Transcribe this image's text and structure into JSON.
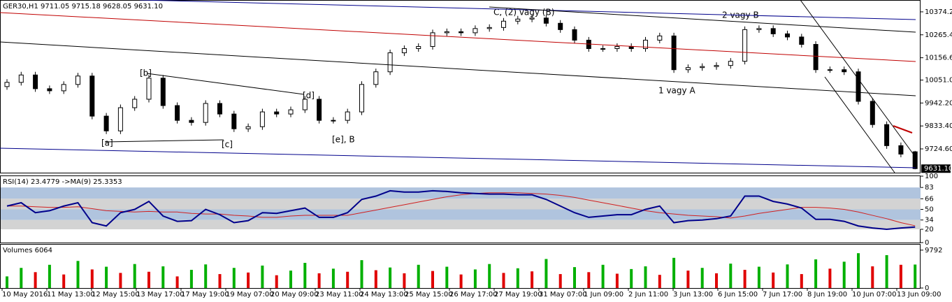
{
  "chart_data": [
    {
      "type": "candlestick",
      "title": "GER30,H1  9711.05 9715.18 9628.05 9631.10",
      "open": [
        10020,
        10040,
        10075,
        10010,
        10000,
        10030,
        10070,
        9880,
        9810,
        9920,
        9960,
        10060,
        9930,
        9860,
        9850,
        9940,
        9890,
        9820,
        9830,
        9900,
        9890,
        9910,
        9960,
        9860,
        9860,
        9900,
        10030,
        10090,
        10180,
        10200,
        10210,
        10275,
        10280,
        10275,
        10295,
        10300,
        10330,
        10340,
        10345,
        10320,
        10290,
        10240,
        10200,
        10200,
        10210,
        10200,
        10240,
        10260,
        10100,
        10110,
        10115,
        10120,
        10140,
        10290,
        10295,
        10270,
        10255,
        10220,
        10100,
        10100,
        10090,
        9950,
        9840,
        9740,
        9711.05
      ],
      "high": [
        10055,
        10090,
        10090,
        10025,
        10045,
        10085,
        10085,
        9895,
        9935,
        9975,
        10075,
        10075,
        9945,
        9875,
        9955,
        9955,
        9905,
        9845,
        9915,
        9915,
        9925,
        9975,
        9975,
        9875,
        9915,
        10045,
        10105,
        10195,
        10215,
        10225,
        10290,
        10295,
        10295,
        10310,
        10315,
        10345,
        10355,
        10360,
        10360,
        10335,
        10305,
        10255,
        10215,
        10225,
        10225,
        10255,
        10275,
        10275,
        10125,
        10130,
        10135,
        10155,
        10305,
        10310,
        10310,
        10285,
        10270,
        10235,
        10115,
        10115,
        10105,
        9965,
        9855,
        9755,
        9715.18
      ],
      "low": [
        10005,
        10025,
        9995,
        9985,
        9985,
        10015,
        9865,
        9795,
        9795,
        9905,
        9945,
        9915,
        9845,
        9835,
        9835,
        9875,
        9805,
        9805,
        9815,
        9875,
        9875,
        9895,
        9845,
        9845,
        9845,
        9885,
        10015,
        10075,
        10165,
        10185,
        10195,
        10260,
        10260,
        10260,
        10280,
        10285,
        10315,
        10325,
        10305,
        10275,
        10225,
        10185,
        10185,
        10185,
        10185,
        10185,
        10225,
        10085,
        10085,
        10095,
        10100,
        10105,
        10125,
        10275,
        10255,
        10240,
        10205,
        10085,
        10085,
        10075,
        9935,
        9825,
        9725,
        9685,
        9628.05
      ],
      "close": [
        10040,
        10075,
        10010,
        10000,
        10030,
        10070,
        9880,
        9810,
        9920,
        9960,
        10060,
        9930,
        9860,
        9850,
        9940,
        9890,
        9820,
        9830,
        9900,
        9890,
        9910,
        9960,
        9860,
        9860,
        9900,
        10030,
        10090,
        10180,
        10200,
        10210,
        10275,
        10280,
        10275,
        10295,
        10300,
        10330,
        10340,
        10345,
        10320,
        10290,
        10240,
        10200,
        10200,
        10210,
        10200,
        10240,
        10260,
        10100,
        10110,
        10115,
        10120,
        10140,
        10290,
        10295,
        10270,
        10255,
        10220,
        10100,
        10100,
        10090,
        9950,
        9840,
        9740,
        9700,
        9631.1
      ],
      "up_color": "#ffffff",
      "down_color": "#000000",
      "ylim": [
        9612,
        10427
      ],
      "yticks": [
        {
          "value": 10374.2,
          "label": "10374.20"
        },
        {
          "value": 10265.4,
          "label": "10265.40"
        },
        {
          "value": 10156.6,
          "label": "10156.60"
        },
        {
          "value": 10051,
          "label": "10051.00"
        },
        {
          "value": 9942.2,
          "label": "9942.20"
        },
        {
          "value": 9833.4,
          "label": "9833.40"
        },
        {
          "value": 9724.6,
          "label": "9724.60"
        }
      ],
      "price_marker": {
        "value": 9631.1,
        "label": "9631.10"
      },
      "annotations": [
        "C, (2) vagy (B)",
        "2 vagy B",
        "1 vagy A",
        "[b]",
        "[a]",
        "[c]",
        "[d]",
        "[e], B"
      ]
    },
    {
      "type": "line",
      "title": "RSI(14) 23.4779 ->MA(9) 25.3353",
      "series": [
        {
          "color": "#00008b",
          "values": [
            55,
            60,
            45,
            48,
            55,
            60,
            30,
            25,
            45,
            50,
            62,
            40,
            32,
            33,
            50,
            42,
            30,
            33,
            45,
            44,
            48,
            52,
            38,
            38,
            45,
            65,
            70,
            78,
            76,
            76,
            78,
            77,
            75,
            74,
            73,
            73,
            72,
            72,
            65,
            55,
            45,
            38,
            40,
            42,
            42,
            50,
            55,
            30,
            33,
            34,
            36,
            40,
            70,
            70,
            62,
            58,
            52,
            35,
            35,
            32,
            25,
            22,
            20,
            22,
            23.48
          ]
        },
        {
          "color": "#d02020",
          "values": [
            55,
            55,
            54,
            53,
            53,
            54,
            51,
            48,
            47,
            46,
            47,
            46,
            46,
            44,
            43,
            43,
            41,
            40,
            38,
            38,
            40,
            41,
            41,
            41,
            41,
            45,
            49,
            53,
            57,
            61,
            65,
            69,
            72,
            74,
            75,
            75,
            75,
            74,
            73,
            71,
            68,
            64,
            60,
            56,
            52,
            48,
            45,
            43,
            41,
            40,
            39,
            37,
            40,
            44,
            47,
            50,
            53,
            53,
            52,
            50,
            46,
            41,
            36,
            30,
            25.34
          ]
        }
      ],
      "ylim": [
        0,
        100
      ],
      "yticks": [
        0,
        20,
        34,
        50,
        66,
        83,
        100
      ]
    },
    {
      "type": "bar",
      "title": "Volumes 6064",
      "values": [
        3000,
        5200,
        4100,
        6000,
        3500,
        7000,
        4800,
        5500,
        3900,
        6200,
        4200,
        5600,
        3000,
        4700,
        6100,
        3600,
        5200,
        4000,
        5800,
        3300,
        4500,
        6500,
        3800,
        5000,
        4200,
        7200,
        4600,
        5300,
        3800,
        6000,
        4400,
        5500,
        3500,
        4800,
        6200,
        3900,
        5100,
        4300,
        7500,
        3600,
        5400,
        4100,
        6000,
        3700,
        4900,
        5600,
        3400,
        7800,
        4500,
        5200,
        3800,
        6300,
        4700,
        5500,
        4000,
        6100,
        3600,
        7400,
        5000,
        6800,
        9000,
        5600,
        8500,
        6000,
        6064
      ],
      "up_color": "#00b000",
      "down_color": "#e00000",
      "ylim": [
        0,
        11200
      ],
      "yticks": [
        0,
        9792
      ]
    }
  ],
  "x_labels": [
    "10 May 2016",
    "11 May 13:00",
    "12 May 15:00",
    "13 May 17:00",
    "17 May 19:00",
    "19 May 07:00",
    "20 May 09:00",
    "23 May 11:00",
    "24 May 13:00",
    "25 May 15:00",
    "26 May 17:00",
    "27 May 19:00",
    "31 May 07:00",
    "1 Jun 09:00",
    "2 Jun 11:00",
    "3 Jun 13:00",
    "6 Jun 15:00",
    "7 Jun 17:00",
    "8 Jun 19:00",
    "10 Jun 07:00",
    "13 Jun 09:00"
  ]
}
